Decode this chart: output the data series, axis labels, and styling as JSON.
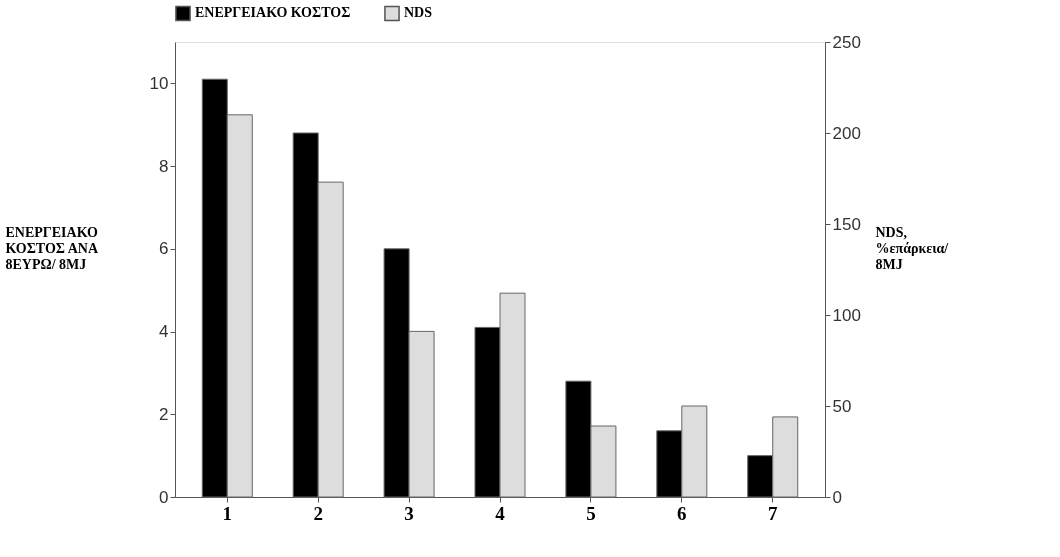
{
  "chart_data": {
    "type": "bar",
    "categories": [
      "1",
      "2",
      "3",
      "4",
      "5",
      "6",
      "7"
    ],
    "ylabel": "ΕΝΕΡΓΕΙΑΚΟ ΚΟΣΤΟΣ ΑΝΑ 8ΕΥΡΩ/ 8MJ",
    "y2label": "NDS, %επάρκεια/ 8MJ",
    "series": [
      {
        "name": "ΕΝΕΡΓΕΙΑΚΟ ΚΟΣΤΟΣ",
        "color": "#000000",
        "values": [
          10.1,
          8.8,
          6.0,
          4.1,
          2.8,
          1.6,
          1.0
        ]
      },
      {
        "name": "NDS",
        "color": "#dddddd",
        "axis": "y2",
        "values": [
          210,
          173,
          91,
          112,
          39,
          50,
          44
        ]
      }
    ],
    "ylim": [
      0,
      11
    ],
    "yticks": [
      0,
      2,
      4,
      6,
      8,
      10
    ],
    "y2lim": [
      0,
      250
    ],
    "y2ticks": [
      0,
      50,
      100,
      150,
      200,
      250
    ],
    "grid": false,
    "legend": "top"
  }
}
